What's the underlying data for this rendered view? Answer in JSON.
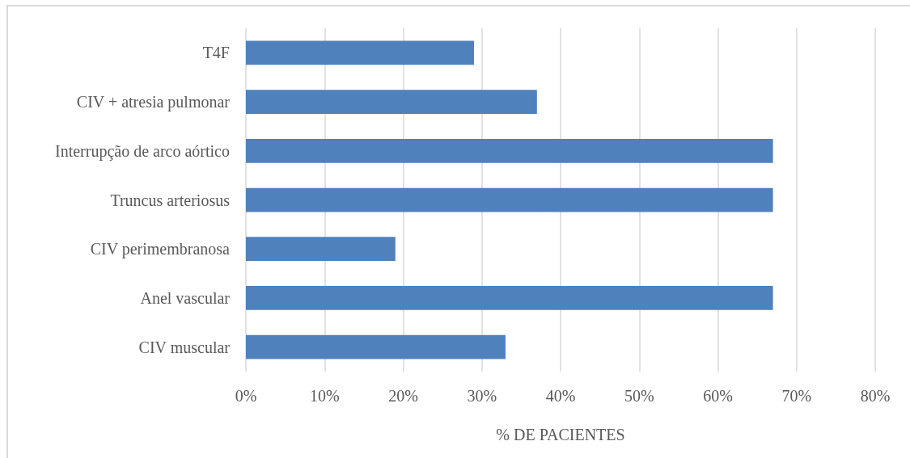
{
  "chart_data": {
    "type": "bar",
    "orientation": "horizontal",
    "categories": [
      "T4F",
      "CIV + atresia pulmonar",
      "Interrupção de arco aórtico",
      "Truncus arteriosus",
      "CIV perimembranosa",
      "Anel vascular",
      "CIV muscular"
    ],
    "values": [
      29,
      37,
      67,
      67,
      19,
      67,
      33
    ],
    "color": "#4f81bd",
    "xlabel": "% DE PACIENTES",
    "xlim": [
      0,
      80
    ],
    "xticks": [
      {
        "value": 0,
        "label": "0%"
      },
      {
        "value": 10,
        "label": "10%"
      },
      {
        "value": 20,
        "label": "20%"
      },
      {
        "value": 30,
        "label": "30%"
      },
      {
        "value": 40,
        "label": "40%"
      },
      {
        "value": 50,
        "label": "50%"
      },
      {
        "value": 60,
        "label": "60%"
      },
      {
        "value": 70,
        "label": "70%"
      },
      {
        "value": 80,
        "label": "80%"
      }
    ],
    "grid": "x"
  }
}
